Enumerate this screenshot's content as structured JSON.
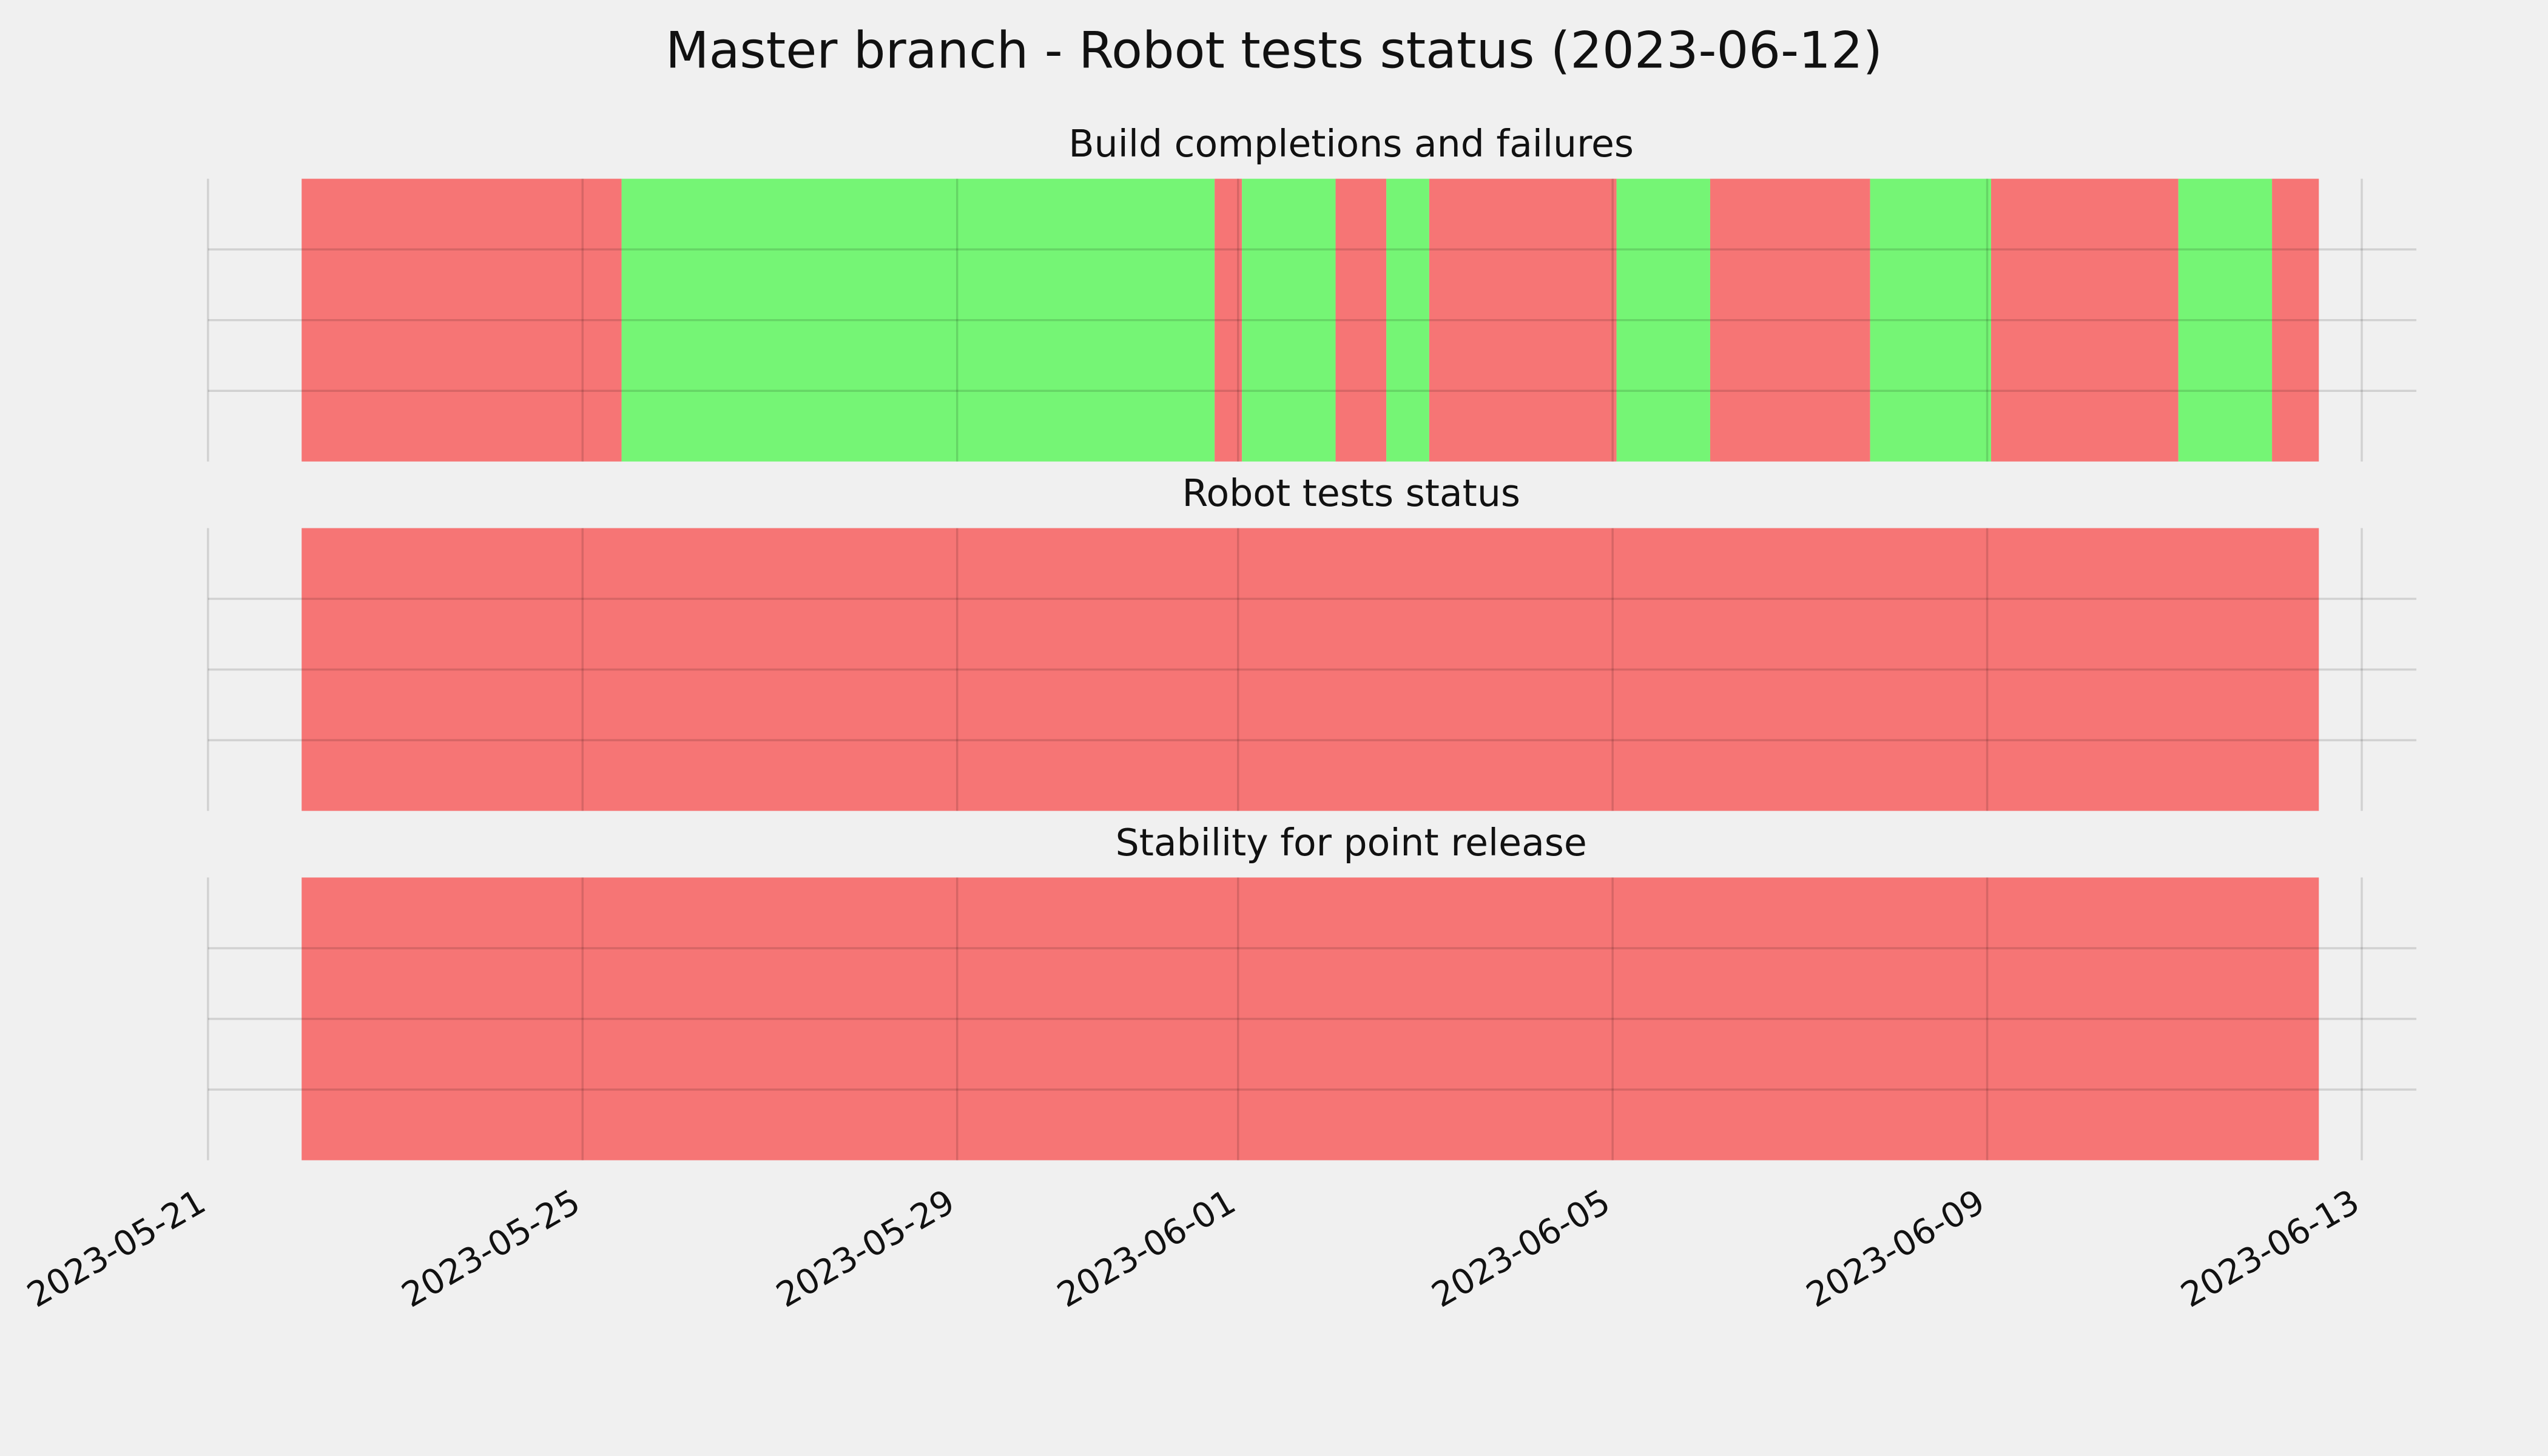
{
  "title": "Master branch - Robot tests status (2023-06-12)",
  "chart_data": [
    {
      "type": "timeline",
      "title": "Build completions and failures",
      "edges": [
        "2023-05-22",
        "2023-05-25T10:00",
        "2023-05-31T18:00",
        "2023-06-01T01:00",
        "2023-06-02T01:00",
        "2023-06-02T14:00",
        "2023-06-03T01:00",
        "2023-06-05T01:00",
        "2023-06-06T01:00",
        "2023-06-07T18:00",
        "2023-06-09T01:00",
        "2023-06-11T01:00",
        "2023-06-12T01:00",
        "2023-06-12T13:00"
      ],
      "colors": [
        "#f67575",
        "#75f575",
        "#f67575",
        "#75f575",
        "#f67575",
        "#75f575",
        "#f67575",
        "#75f575",
        "#f67575",
        "#75f575",
        "#f67575",
        "#75f575",
        "#f67575"
      ],
      "xlim": [
        "2023-05-21",
        "2023-06-13T14:00"
      ],
      "xticks": [
        "2023-05-21",
        "2023-05-25",
        "2023-05-29",
        "2023-06-01",
        "2023-06-05",
        "2023-06-09",
        "2023-06-13"
      ],
      "ylim": [
        0,
        1
      ],
      "yticks": [
        0.25,
        0.5,
        0.75
      ],
      "grid": true
    },
    {
      "type": "timeline",
      "title": "Robot tests status",
      "edges": [
        "2023-05-22",
        "2023-06-12T13:00"
      ],
      "colors": [
        "#f67575"
      ],
      "xlim": [
        "2023-05-21",
        "2023-06-13T14:00"
      ],
      "xticks": [
        "2023-05-21",
        "2023-05-25",
        "2023-05-29",
        "2023-06-01",
        "2023-06-05",
        "2023-06-09",
        "2023-06-13"
      ],
      "ylim": [
        0,
        1
      ],
      "yticks": [
        0.25,
        0.5,
        0.75
      ],
      "grid": true
    },
    {
      "type": "timeline",
      "title": "Stability for point release",
      "edges": [
        "2023-05-22",
        "2023-06-12T13:00"
      ],
      "colors": [
        "#f67575"
      ],
      "xlim": [
        "2023-05-21",
        "2023-06-13T14:00"
      ],
      "xticks": [
        "2023-05-21",
        "2023-05-25",
        "2023-05-29",
        "2023-06-01",
        "2023-06-05",
        "2023-06-09",
        "2023-06-13"
      ],
      "ylim": [
        0,
        1
      ],
      "yticks": [
        0.25,
        0.5,
        0.75
      ],
      "grid": true
    }
  ]
}
